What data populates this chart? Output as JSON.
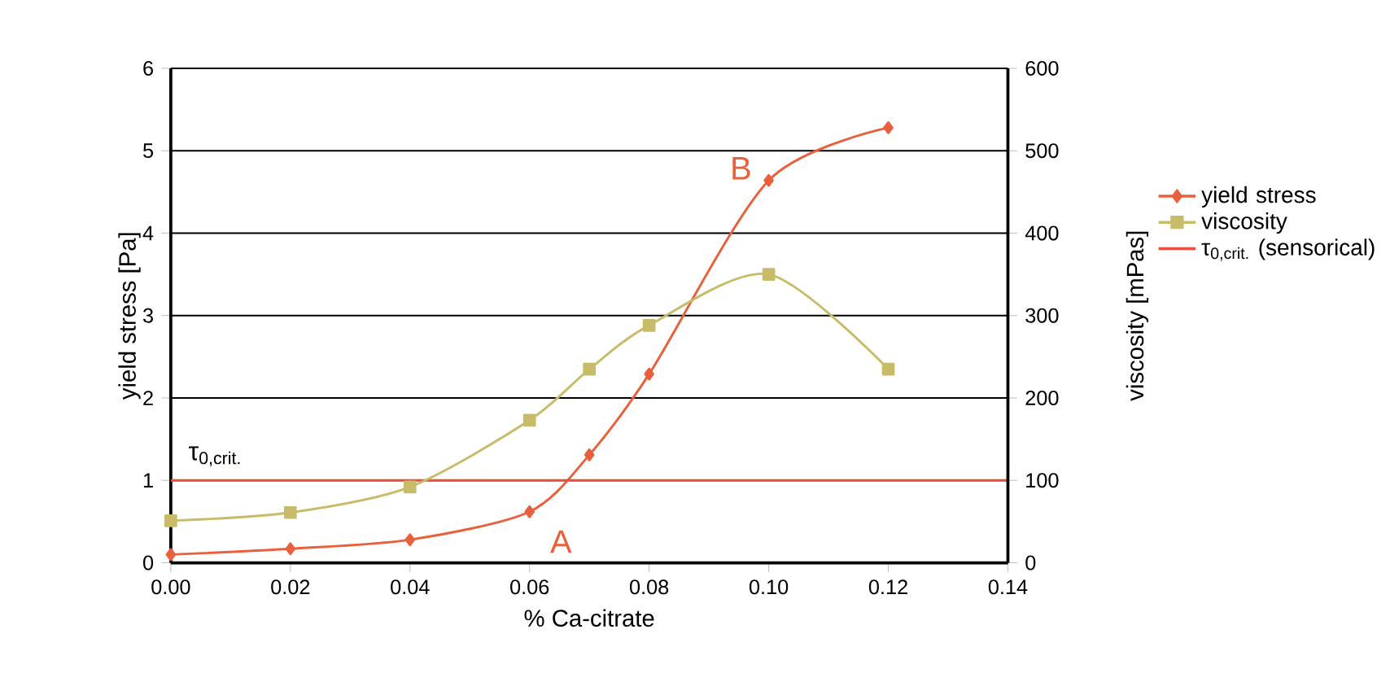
{
  "chart_data": {
    "type": "line",
    "xlabel": "% Ca-citrate",
    "ylabel": "yield stress [Pa]",
    "y2label": "viscosity [mPas]",
    "x": [
      0,
      0.02,
      0.04,
      0.06,
      0.07,
      0.08,
      0.1,
      0.12
    ],
    "series": [
      {
        "name": "yield stress",
        "color": "#e8603c",
        "marker": "diamond",
        "values": [
          0.1,
          0.17,
          0.28,
          0.62,
          1.31,
          2.29,
          4.64,
          5.28
        ]
      },
      {
        "name": "viscosity",
        "color": "#c8bc6a",
        "marker": "square",
        "axis": "y2",
        "values": [
          51,
          61,
          92,
          173,
          235,
          288,
          350,
          235
        ]
      },
      {
        "name": "τ$_{0,crit.}$ (sensorical)",
        "color": "#e8503c",
        "marker": "none",
        "x": [
          0,
          0.14
        ],
        "values": [
          1,
          1
        ]
      }
    ],
    "xlim": [
      0,
      0.14
    ],
    "xticks": [
      {
        "value": 0,
        "label": "0.00"
      },
      {
        "value": 0.02,
        "label": "0.02"
      },
      {
        "value": 0.04,
        "label": "0.04"
      },
      {
        "value": 0.06,
        "label": "0.06"
      },
      {
        "value": 0.08,
        "label": "0.08"
      },
      {
        "value": 0.1,
        "label": "0.10"
      },
      {
        "value": 0.12,
        "label": "0.12"
      },
      {
        "value": 0.14,
        "label": "0.14"
      }
    ],
    "ylim": [
      0,
      6
    ],
    "yticks": [
      0,
      1,
      2,
      3,
      4,
      5,
      6
    ],
    "y2lim": [
      0,
      600
    ],
    "y2ticks": [
      0,
      100,
      200,
      300,
      400,
      500,
      600
    ],
    "grid": "y",
    "legend": "right",
    "annotations": [
      "A",
      "B",
      "τ$_{0,crit.}$"
    ]
  }
}
